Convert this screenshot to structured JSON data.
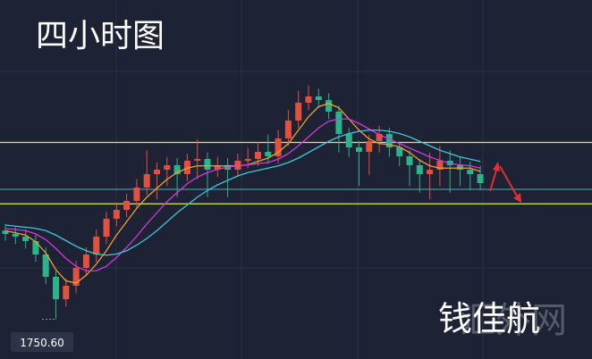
{
  "chart_data": {
    "type": "candlestick",
    "title": "四小时图",
    "author": "钱佳航",
    "watermark": "汇外网",
    "ylim": [
      1715,
      2036.6
    ],
    "up_color": "#e2513f",
    "down_color": "#2bb38a",
    "low_marker": {
      "value": 1750.6,
      "label": "1750.60"
    },
    "levels": [
      {
        "value": 1909,
        "color": "#e8e64a"
      },
      {
        "value": 1854,
        "color": "#e8e64a"
      },
      {
        "value": 1867,
        "color": "#4d8fa0"
      }
    ],
    "candles": {
      "open": [
        1830,
        1827,
        1824.6,
        1820.6,
        1808.6,
        1788.6,
        1768.6,
        1780.6,
        1796.6,
        1808.6,
        1824.6,
        1840.6,
        1848.6,
        1856.6,
        1868.6,
        1880.6,
        1884.6,
        1888.6,
        1880.6,
        1892.6,
        1894.2,
        1884.6,
        1888.6,
        1884.6,
        1892.6,
        1894.2,
        1900.6,
        1896.6,
        1912.6,
        1928.6,
        1944.6,
        1950.2,
        1947,
        1936.6,
        1916.6,
        1904.6,
        1900.6,
        1910.2,
        1916.6,
        1904.6,
        1896.6,
        1888.6,
        1880.6,
        1884.6,
        1892.6,
        1888.6,
        1884.6,
        1880.6
      ],
      "high": [
        1836,
        1833,
        1831,
        1826,
        1815,
        1794,
        1787,
        1803,
        1815,
        1831,
        1847,
        1855,
        1863,
        1876,
        1902,
        1891,
        1896,
        1895,
        1899,
        1912,
        1900,
        1896,
        1895,
        1899,
        1904,
        1909,
        1916,
        1920,
        1938,
        1955,
        1960,
        1957,
        1953,
        1942,
        1922,
        1910,
        1916,
        1924,
        1922,
        1910,
        1902,
        1894,
        1900,
        1906,
        1902,
        1896,
        1892,
        1888
      ],
      "low": [
        1821,
        1818,
        1814,
        1802,
        1782,
        1750.6,
        1762,
        1774,
        1790,
        1802,
        1818,
        1834,
        1842,
        1850,
        1862,
        1858,
        1870,
        1860,
        1874,
        1876,
        1860,
        1878,
        1860,
        1878,
        1886,
        1888,
        1890,
        1890,
        1906,
        1922,
        1938,
        1940,
        1930,
        1900,
        1896,
        1870,
        1880,
        1900,
        1896,
        1888,
        1870,
        1864,
        1858,
        1870,
        1864,
        1870,
        1866,
        1866
      ],
      "close": [
        1827,
        1824.6,
        1820.6,
        1808.6,
        1788.6,
        1768.6,
        1780.6,
        1796.6,
        1808.6,
        1824.6,
        1840.6,
        1848.6,
        1856.6,
        1868.6,
        1880.6,
        1884.6,
        1888.6,
        1880.6,
        1892.6,
        1894.2,
        1884.6,
        1888.6,
        1884.6,
        1892.6,
        1894.2,
        1900.6,
        1896.6,
        1912.6,
        1928.6,
        1944.6,
        1950.2,
        1947,
        1936.6,
        1916.6,
        1904.6,
        1900.6,
        1910.2,
        1916.6,
        1904.6,
        1896.6,
        1888.6,
        1880.6,
        1884.6,
        1892.6,
        1888.6,
        1884.6,
        1880.6,
        1872.6
      ]
    },
    "series": [
      {
        "color": "#f0a030",
        "values": [
          1830,
          1828,
          1826,
          1820,
          1810,
          1795,
          1785,
          1783,
          1790,
          1800,
          1812,
          1826,
          1838,
          1850,
          1860,
          1868,
          1876,
          1882,
          1886,
          1888,
          1888,
          1888,
          1888,
          1888,
          1889,
          1892,
          1895,
          1900,
          1908,
          1920,
          1932,
          1941,
          1944,
          1940,
          1930,
          1920,
          1912,
          1908,
          1907,
          1905,
          1900,
          1893,
          1888,
          1886,
          1886,
          1886,
          1886,
          1883
        ]
      },
      {
        "color": "#d03ad8",
        "values": [
          1832,
          1831,
          1830,
          1827,
          1822,
          1814,
          1805,
          1798,
          1794,
          1794,
          1798,
          1806,
          1815,
          1825,
          1836,
          1846,
          1856,
          1864,
          1872,
          1878,
          1882,
          1885,
          1887,
          1888,
          1889,
          1890,
          1891,
          1894,
          1899,
          1906,
          1914,
          1922,
          1928,
          1930,
          1930,
          1926,
          1921,
          1916,
          1912,
          1908,
          1904,
          1900,
          1896,
          1893,
          1890,
          1889,
          1888,
          1886
        ]
      },
      {
        "color": "#3fc6d8",
        "values": [
          1835,
          1834,
          1833,
          1832,
          1830,
          1826,
          1821,
          1816,
          1812,
          1809,
          1808,
          1809,
          1812,
          1817,
          1823,
          1830,
          1838,
          1846,
          1853,
          1860,
          1866,
          1871,
          1875,
          1879,
          1882,
          1884,
          1886,
          1888,
          1891,
          1895,
          1900,
          1905,
          1910,
          1914,
          1917,
          1919,
          1920,
          1920,
          1919,
          1917,
          1914,
          1910,
          1906,
          1902,
          1899,
          1896,
          1894,
          1892
        ]
      }
    ]
  }
}
